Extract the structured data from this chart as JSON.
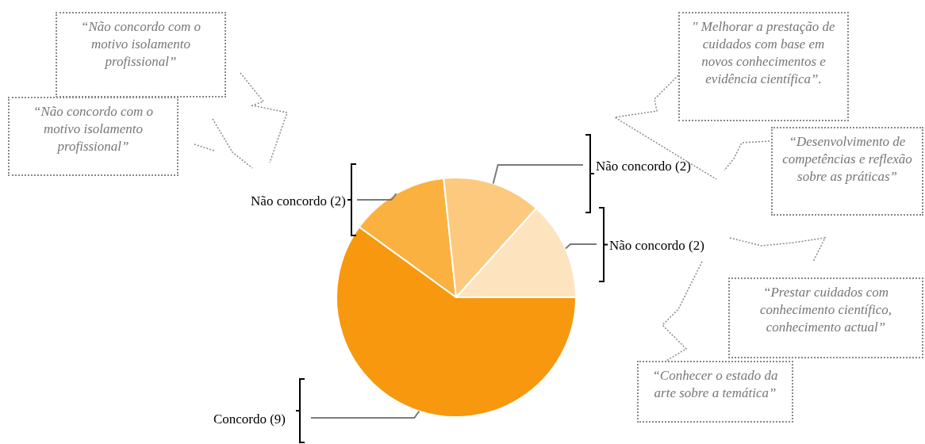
{
  "chart_data": {
    "type": "pie",
    "categories": [
      "Concordo (9)",
      "Não concordo (2)",
      "Não concordo (2)",
      "Não concordo (2)"
    ],
    "values": [
      9,
      2,
      2,
      2
    ],
    "colors": [
      "#f7980f",
      "#fbb13f",
      "#fcc97f",
      "#fde4bf"
    ],
    "annotations": [
      "“Não concordo com o motivo isolamento profissional”",
      "“Não concordo com o motivo isolamento profissional”",
      "\" Melhorar a prestação de cuidados com base em novos conhecimentos e evidência científica”.",
      "“Desenvolvimento de competências e reflexão sobre as práticas”",
      "“Prestar cuidados com conhecimento científico, conhecimento actual”",
      "“Conhecer o estado da arte sobre a temática”"
    ]
  }
}
